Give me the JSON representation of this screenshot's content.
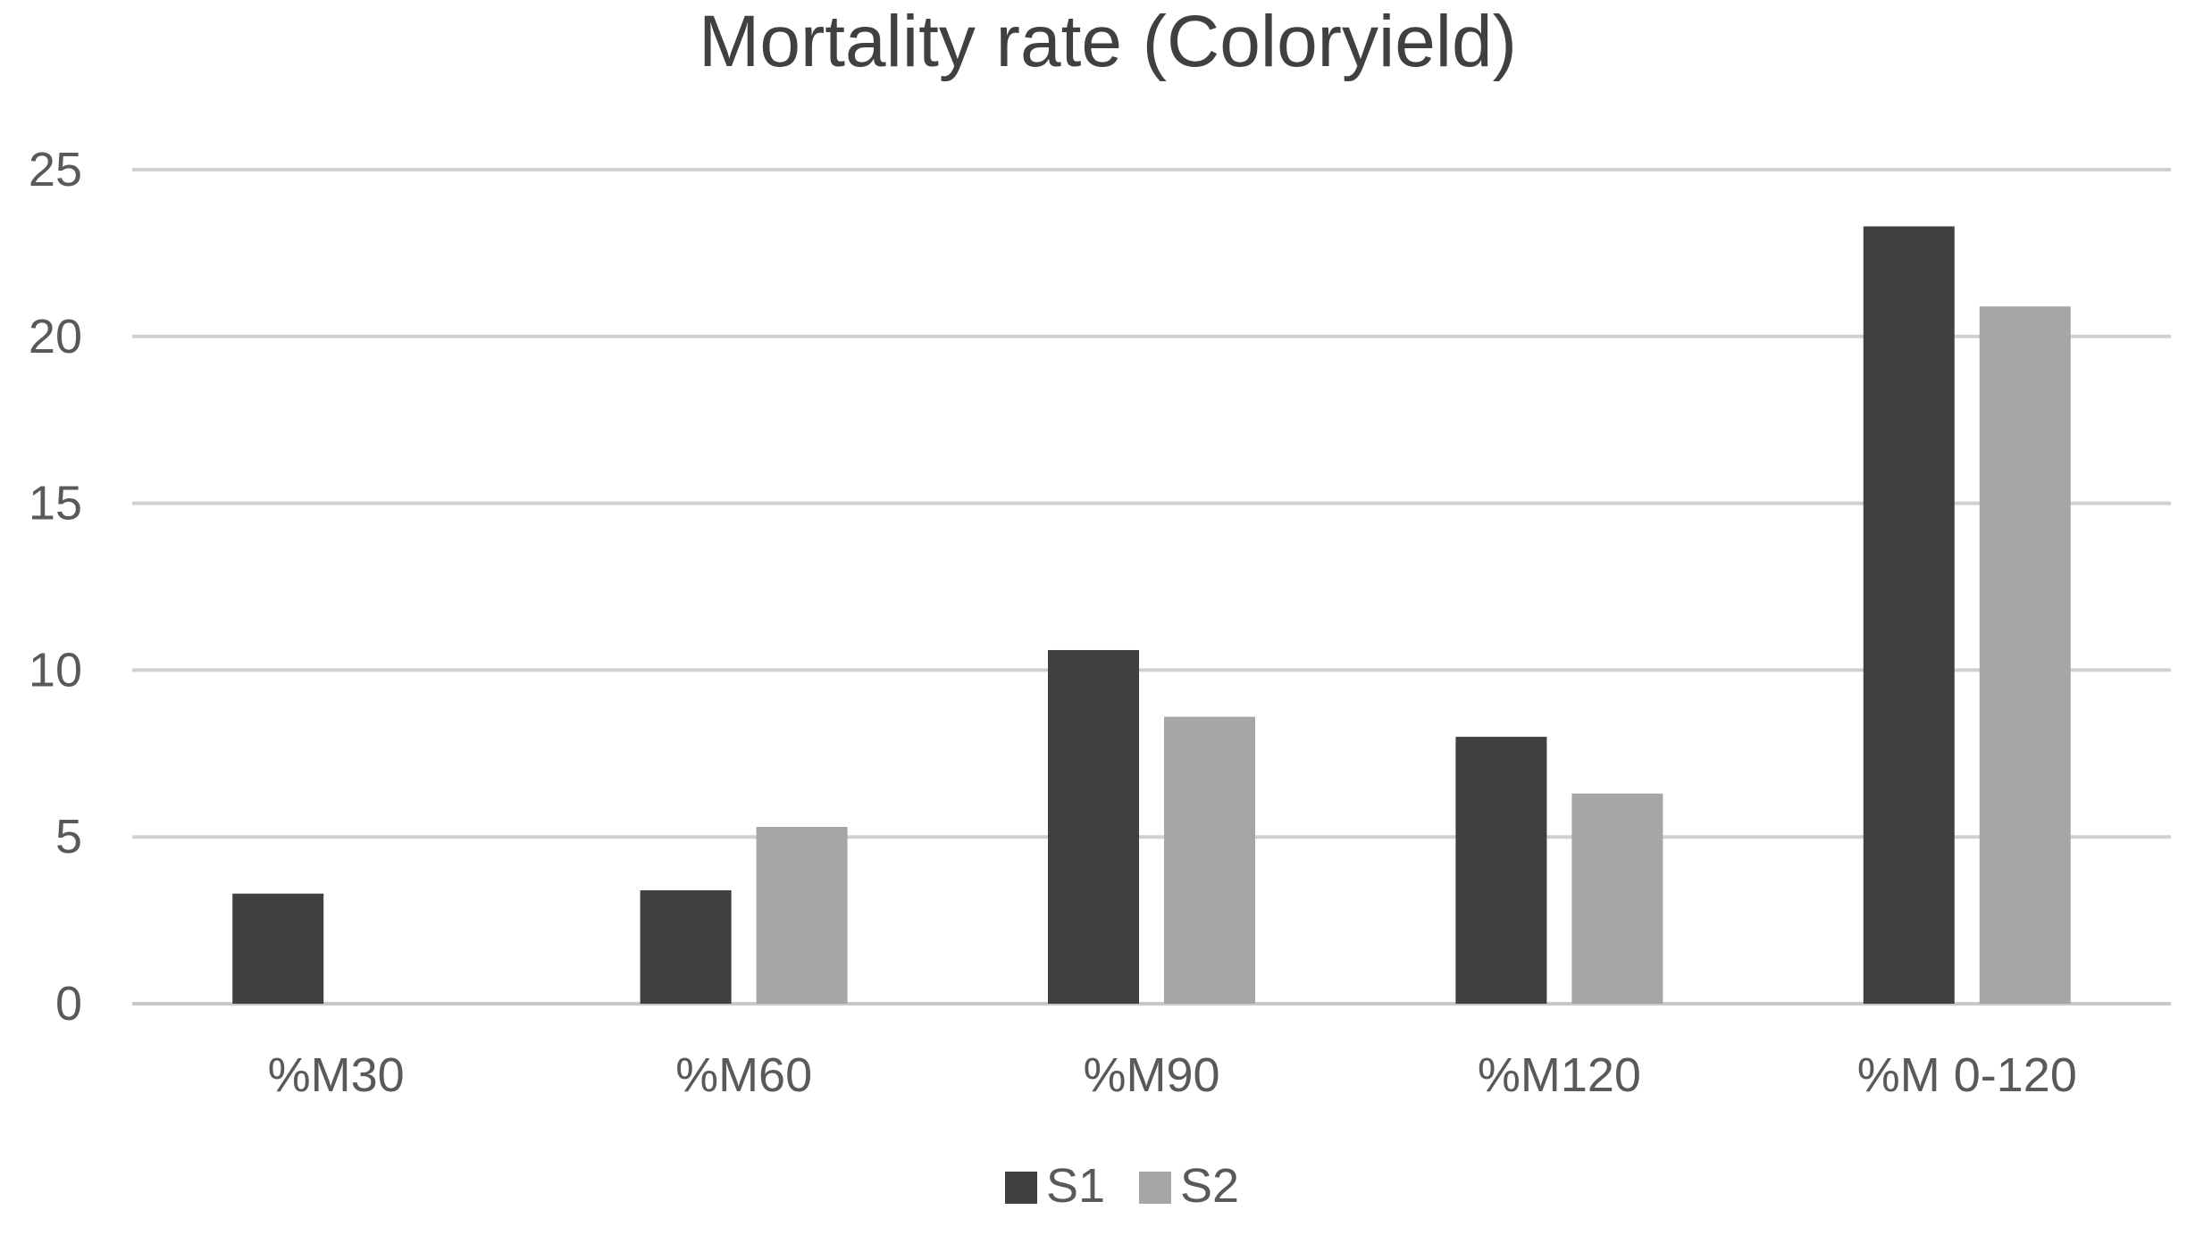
{
  "chart_data": {
    "type": "bar",
    "title": "Mortality rate (Coloryield)",
    "xlabel": "",
    "ylabel": "",
    "categories": [
      "%M30",
      "%M60",
      "%M90",
      "%M120",
      "%M 0-120"
    ],
    "series": [
      {
        "name": "S1",
        "color": "#404040",
        "values": [
          3.3,
          3.4,
          10.6,
          8.0,
          23.3
        ]
      },
      {
        "name": "S2",
        "color": "#a6a6a6",
        "values": [
          0,
          5.3,
          8.6,
          6.3,
          20.9
        ]
      }
    ],
    "ylim": [
      0,
      25
    ],
    "yticks": [
      "0",
      "5",
      "10",
      "15",
      "20",
      "25"
    ],
    "grid": true,
    "legend_position": "bottom-center"
  }
}
